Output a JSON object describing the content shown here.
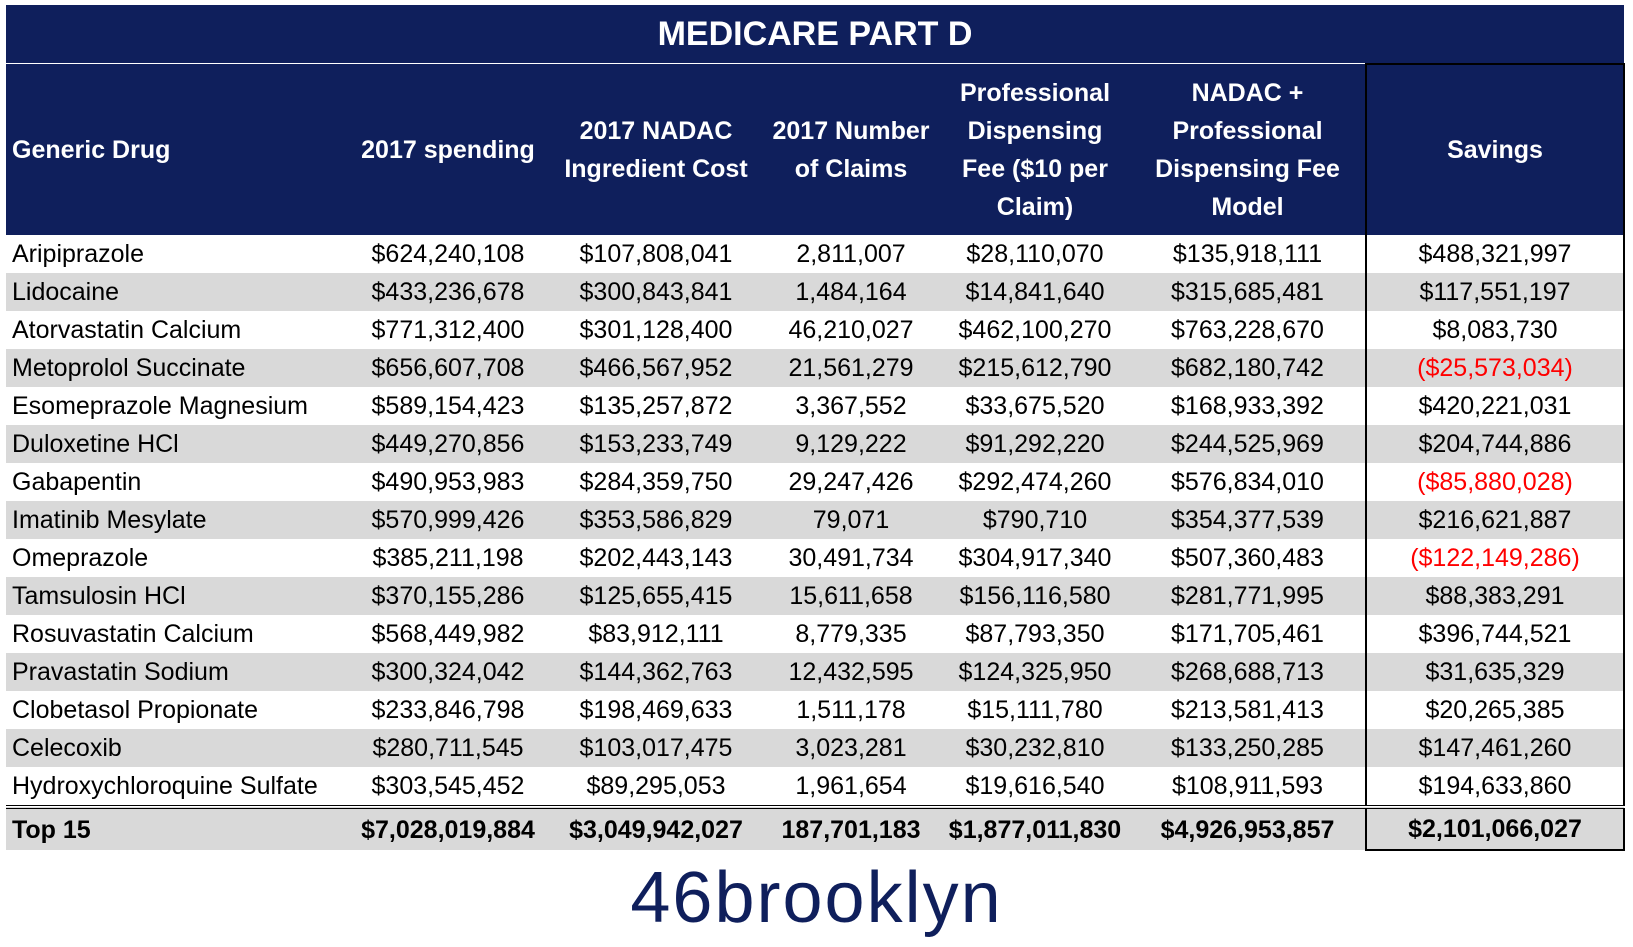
{
  "title": "MEDICARE PART D",
  "headers": [
    "Generic Drug",
    "2017 spending",
    "2017 NADAC Ingredient Cost",
    "2017 Number of Claims",
    "Professional Dispensing Fee ($10 per Claim)",
    "NADAC + Professional Dispensing Fee Model",
    "Savings"
  ],
  "rows": [
    {
      "drug": "Aripiprazole",
      "spending": "$624,240,108",
      "nadac": "$107,808,041",
      "claims": "2,811,007",
      "fee": "$28,110,070",
      "model": "$135,918,111",
      "savings": "$488,321,997"
    },
    {
      "drug": "Lidocaine",
      "spending": "$433,236,678",
      "nadac": "$300,843,841",
      "claims": "1,484,164",
      "fee": "$14,841,640",
      "model": "$315,685,481",
      "savings": "$117,551,197"
    },
    {
      "drug": "Atorvastatin Calcium",
      "spending": "$771,312,400",
      "nadac": "$301,128,400",
      "claims": "46,210,027",
      "fee": "$462,100,270",
      "model": "$763,228,670",
      "savings": "$8,083,730"
    },
    {
      "drug": "Metoprolol Succinate",
      "spending": "$656,607,708",
      "nadac": "$466,567,952",
      "claims": "21,561,279",
      "fee": "$215,612,790",
      "model": "$682,180,742",
      "savings": "($25,573,034)"
    },
    {
      "drug": "Esomeprazole Magnesium",
      "spending": "$589,154,423",
      "nadac": "$135,257,872",
      "claims": "3,367,552",
      "fee": "$33,675,520",
      "model": "$168,933,392",
      "savings": "$420,221,031"
    },
    {
      "drug": "Duloxetine HCl",
      "spending": "$449,270,856",
      "nadac": "$153,233,749",
      "claims": "9,129,222",
      "fee": "$91,292,220",
      "model": "$244,525,969",
      "savings": "$204,744,886"
    },
    {
      "drug": "Gabapentin",
      "spending": "$490,953,983",
      "nadac": "$284,359,750",
      "claims": "29,247,426",
      "fee": "$292,474,260",
      "model": "$576,834,010",
      "savings": "($85,880,028)"
    },
    {
      "drug": "Imatinib Mesylate",
      "spending": "$570,999,426",
      "nadac": "$353,586,829",
      "claims": "79,071",
      "fee": "$790,710",
      "model": "$354,377,539",
      "savings": "$216,621,887"
    },
    {
      "drug": "Omeprazole",
      "spending": "$385,211,198",
      "nadac": "$202,443,143",
      "claims": "30,491,734",
      "fee": "$304,917,340",
      "model": "$507,360,483",
      "savings": "($122,149,286)"
    },
    {
      "drug": "Tamsulosin HCl",
      "spending": "$370,155,286",
      "nadac": "$125,655,415",
      "claims": "15,611,658",
      "fee": "$156,116,580",
      "model": "$281,771,995",
      "savings": "$88,383,291"
    },
    {
      "drug": "Rosuvastatin Calcium",
      "spending": "$568,449,982",
      "nadac": "$83,912,111",
      "claims": "8,779,335",
      "fee": "$87,793,350",
      "model": "$171,705,461",
      "savings": "$396,744,521"
    },
    {
      "drug": "Pravastatin Sodium",
      "spending": "$300,324,042",
      "nadac": "$144,362,763",
      "claims": "12,432,595",
      "fee": "$124,325,950",
      "model": "$268,688,713",
      "savings": "$31,635,329"
    },
    {
      "drug": "Clobetasol Propionate",
      "spending": "$233,846,798",
      "nadac": "$198,469,633",
      "claims": "1,511,178",
      "fee": "$15,111,780",
      "model": "$213,581,413",
      "savings": "$20,265,385"
    },
    {
      "drug": "Celecoxib",
      "spending": "$280,711,545",
      "nadac": "$103,017,475",
      "claims": "3,023,281",
      "fee": "$30,232,810",
      "model": "$133,250,285",
      "savings": "$147,461,260"
    },
    {
      "drug": "Hydroxychloroquine Sulfate",
      "spending": "$303,545,452",
      "nadac": "$89,295,053",
      "claims": "1,961,654",
      "fee": "$19,616,540",
      "model": "$108,911,593",
      "savings": "$194,633,860"
    }
  ],
  "total": {
    "drug": "Top 15",
    "spending": "$7,028,019,884",
    "nadac": "$3,049,942,027",
    "claims": "187,701,183",
    "fee": "$1,877,011,830",
    "model": "$4,926,953,857",
    "savings": "$2,101,066,027"
  },
  "logo_text": "46brooklyn",
  "colors": {
    "header_bg": "#0f1f5c",
    "row_shade": "#d9d9d9",
    "negative": "#ff0000"
  },
  "chart_data": {
    "type": "table",
    "title": "MEDICARE PART D",
    "columns": [
      "Generic Drug",
      "2017 spending",
      "2017 NADAC Ingredient Cost",
      "2017 Number of Claims",
      "Professional Dispensing Fee ($10 per Claim)",
      "NADAC + Professional Dispensing Fee Model",
      "Savings"
    ],
    "rows": [
      [
        "Aripiprazole",
        624240108,
        107808041,
        2811007,
        28110070,
        135918111,
        488321997
      ],
      [
        "Lidocaine",
        433236678,
        300843841,
        1484164,
        14841640,
        315685481,
        117551197
      ],
      [
        "Atorvastatin Calcium",
        771312400,
        301128400,
        46210027,
        462100270,
        763228670,
        8083730
      ],
      [
        "Metoprolol Succinate",
        656607708,
        466567952,
        21561279,
        215612790,
        682180742,
        -25573034
      ],
      [
        "Esomeprazole Magnesium",
        589154423,
        135257872,
        3367552,
        33675520,
        168933392,
        420221031
      ],
      [
        "Duloxetine HCl",
        449270856,
        153233749,
        9129222,
        91292220,
        244525969,
        204744886
      ],
      [
        "Gabapentin",
        490953983,
        284359750,
        29247426,
        292474260,
        576834010,
        -85880028
      ],
      [
        "Imatinib Mesylate",
        570999426,
        353586829,
        79071,
        790710,
        354377539,
        216621887
      ],
      [
        "Omeprazole",
        385211198,
        202443143,
        30491734,
        304917340,
        507360483,
        -122149286
      ],
      [
        "Tamsulosin HCl",
        370155286,
        125655415,
        15611658,
        156116580,
        281771995,
        88383291
      ],
      [
        "Rosuvastatin Calcium",
        568449982,
        83912111,
        8779335,
        87793350,
        171705461,
        396744521
      ],
      [
        "Pravastatin Sodium",
        300324042,
        144362763,
        12432595,
        124325950,
        268688713,
        31635329
      ],
      [
        "Clobetasol Propionate",
        233846798,
        198469633,
        1511178,
        15111780,
        213581413,
        20265385
      ],
      [
        "Celecoxib",
        280711545,
        103017475,
        3023281,
        30232810,
        133250285,
        147461260
      ],
      [
        "Hydroxychloroquine Sulfate",
        303545452,
        89295053,
        1961654,
        19616540,
        108911593,
        194633860
      ]
    ],
    "total": [
      "Top 15",
      7028019884,
      3049942027,
      187701183,
      1877011830,
      4926953857,
      2101066027
    ]
  }
}
